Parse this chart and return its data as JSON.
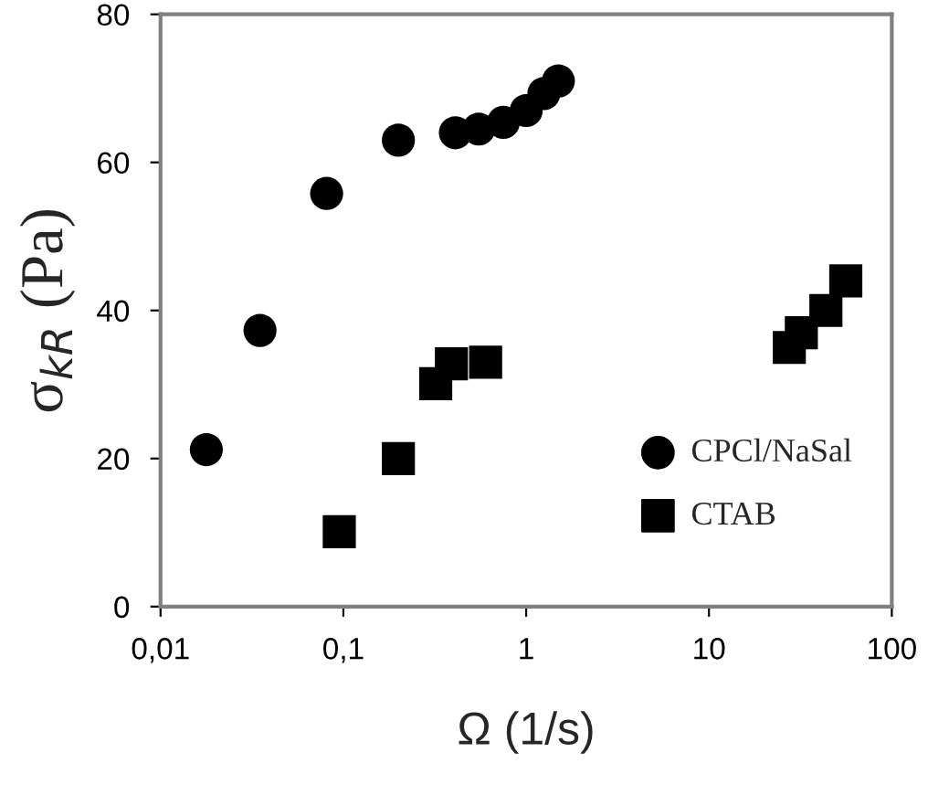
{
  "chart_data": {
    "type": "scatter",
    "xlabel": "Ω (1/s)",
    "ylabel": "σ$_{kR}$ (Pa)",
    "log": "x",
    "xlim": [
      0.01,
      100
    ],
    "xticks": [
      {
        "value": 0.01,
        "label": "0,01"
      },
      {
        "value": 0.1,
        "label": "0,1"
      },
      1,
      10,
      100
    ],
    "ylim": [
      0,
      80
    ],
    "yticks": [
      0,
      20,
      40,
      60,
      80
    ],
    "grid": false,
    "legend": "bottom right",
    "series": [
      {
        "name": "CPCl/NaSal",
        "color": "#000000",
        "marker": "circle",
        "x": [
          0.0178,
          0.035,
          0.081,
          0.2,
          0.41,
          0.55,
          0.75,
          1.0,
          1.25,
          1.5
        ],
        "values": [
          21.2,
          37.3,
          55.8,
          63,
          64,
          64.5,
          65.4,
          67,
          69.3,
          71
        ]
      },
      {
        "name": "CTAB",
        "color": "#000000",
        "marker": "square",
        "x": [
          0.095,
          0.2,
          0.32,
          0.39,
          0.6,
          27.5,
          32,
          43.6,
          56
        ],
        "values": [
          10.1,
          20,
          30.1,
          32.8,
          33,
          35,
          37,
          40,
          44
        ]
      }
    ]
  }
}
